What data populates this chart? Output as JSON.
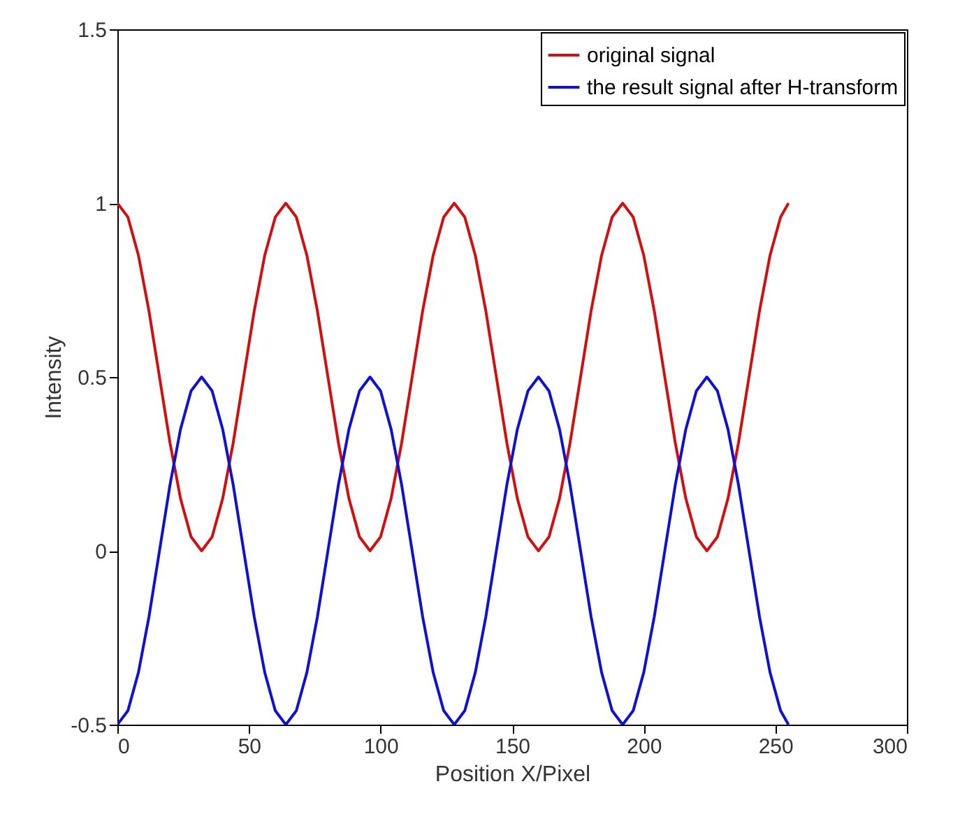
{
  "chart_data": {
    "type": "line",
    "xlabel": "Position X/Pixel",
    "ylabel": "Intensity",
    "xlim": [
      0,
      300
    ],
    "ylim": [
      -0.5,
      1.5
    ],
    "xticks": [
      0,
      50,
      100,
      150,
      200,
      250,
      300
    ],
    "yticks": [
      -0.5,
      0,
      0.5,
      1,
      1.5
    ],
    "grid": false,
    "legend": "top right",
    "x": [
      0,
      4,
      8,
      12,
      16,
      20,
      24,
      28,
      32,
      36,
      40,
      44,
      48,
      52,
      56,
      60,
      64,
      68,
      72,
      76,
      80,
      84,
      88,
      92,
      96,
      100,
      104,
      108,
      112,
      116,
      120,
      124,
      128,
      132,
      136,
      140,
      144,
      148,
      152,
      156,
      160,
      164,
      168,
      172,
      176,
      180,
      184,
      188,
      192,
      196,
      200,
      204,
      208,
      212,
      216,
      220,
      224,
      228,
      232,
      236,
      240,
      244,
      248,
      252,
      255
    ],
    "series": [
      {
        "name": "original signal",
        "color": "#d01010",
        "values": [
          1,
          0.96,
          0.85,
          0.69,
          0.5,
          0.31,
          0.15,
          0.04,
          0,
          0.04,
          0.15,
          0.31,
          0.5,
          0.69,
          0.85,
          0.96,
          1,
          0.96,
          0.85,
          0.69,
          0.5,
          0.31,
          0.15,
          0.04,
          0,
          0.04,
          0.15,
          0.31,
          0.5,
          0.69,
          0.85,
          0.96,
          1,
          0.96,
          0.85,
          0.69,
          0.5,
          0.31,
          0.15,
          0.04,
          0,
          0.04,
          0.15,
          0.31,
          0.5,
          0.69,
          0.85,
          0.96,
          1,
          0.96,
          0.85,
          0.69,
          0.5,
          0.31,
          0.15,
          0.04,
          0,
          0.04,
          0.15,
          0.31,
          0.5,
          0.69,
          0.85,
          0.96,
          1
        ]
      },
      {
        "name": "the result signal after H-transform",
        "color": "#1010d0",
        "values": [
          -0.5,
          -0.46,
          -0.35,
          -0.19,
          0,
          0.19,
          0.35,
          0.46,
          0.5,
          0.46,
          0.35,
          0.19,
          0,
          -0.19,
          -0.35,
          -0.46,
          -0.5,
          -0.46,
          -0.35,
          -0.19,
          0,
          0.19,
          0.35,
          0.46,
          0.5,
          0.46,
          0.35,
          0.19,
          0,
          -0.19,
          -0.35,
          -0.46,
          -0.5,
          -0.46,
          -0.35,
          -0.19,
          0,
          0.19,
          0.35,
          0.46,
          0.5,
          0.46,
          0.35,
          0.19,
          0,
          -0.19,
          -0.35,
          -0.46,
          -0.5,
          -0.46,
          -0.35,
          -0.19,
          0,
          0.19,
          0.35,
          0.46,
          0.5,
          0.46,
          0.35,
          0.19,
          0,
          -0.19,
          -0.35,
          -0.46,
          -0.5
        ]
      }
    ]
  }
}
